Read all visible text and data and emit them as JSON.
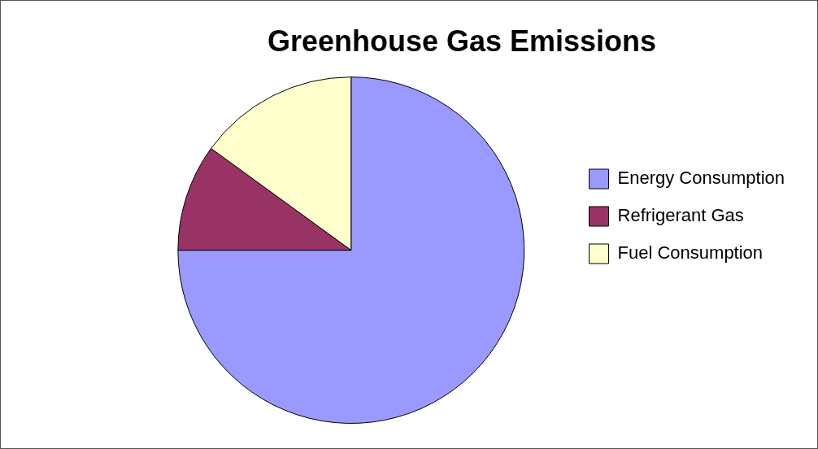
{
  "chart_data": {
    "type": "pie",
    "title": "Greenhouse Gas Emissions",
    "categories": [
      "Energy Consumption",
      "Refrigerant Gas",
      "Fuel Consumption"
    ],
    "values": [
      75,
      10,
      15
    ],
    "colors": [
      "#9999ff",
      "#993366",
      "#ffffcc"
    ],
    "legend": "right"
  }
}
